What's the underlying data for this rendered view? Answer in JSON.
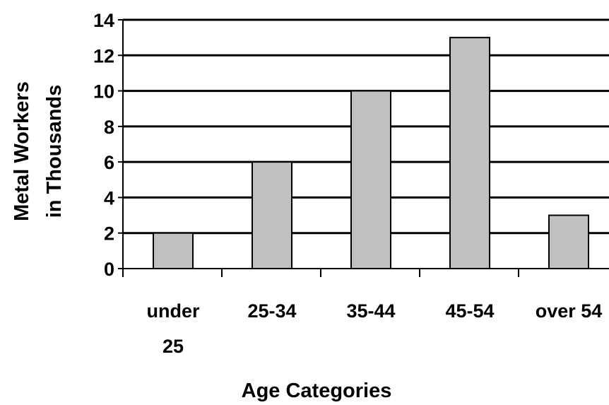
{
  "chart_data": {
    "type": "bar",
    "categories": [
      [
        "under",
        "25"
      ],
      [
        "25-34"
      ],
      [
        "35-44"
      ],
      [
        "45-54"
      ],
      [
        "over 54"
      ]
    ],
    "values": [
      2,
      6,
      10,
      13,
      3
    ],
    "title": "",
    "xlabel": "Age Categories",
    "ylabel": [
      "Metal Workers",
      "in Thousands"
    ],
    "ylim": [
      0,
      14
    ],
    "yticks": [
      0,
      2,
      4,
      6,
      8,
      10,
      12,
      14
    ],
    "grid": true,
    "legend": "none",
    "colors": {
      "bar_fill": "#c0c0c0",
      "bar_stroke": "#000000",
      "grid": "#000000",
      "axis": "#000000",
      "text": "#000000"
    }
  }
}
